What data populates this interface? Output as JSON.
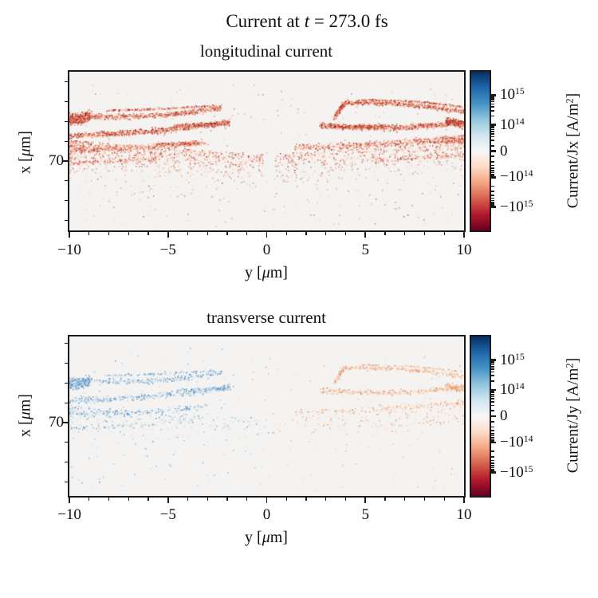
{
  "figure": {
    "suptitle": {
      "segments": [
        {
          "t": "Current at "
        },
        {
          "t": "t",
          "italic": true
        },
        {
          "t": " = 273.0 fs"
        }
      ]
    }
  },
  "palettes": {
    "red": [
      "#fce9dd",
      "#f9d5bd",
      "#f5b99a",
      "#f09b77",
      "#e87b59",
      "#d85b42",
      "#c43d30",
      "#ab2622",
      "#8f1a1c"
    ],
    "blue": [
      "#e8f1f8",
      "#d4e5f2",
      "#bcd7ea",
      "#a0c6e2",
      "#82b3d6",
      "#649dc8",
      "#4b86b8",
      "#3a6fa5"
    ],
    "orange": [
      "#fdf0e6",
      "#fbe2cf",
      "#f8d2b6",
      "#f4c09c",
      "#eeac82",
      "#e69669",
      "#db7f52"
    ]
  },
  "subplots": [
    {
      "title": "longitudinal current",
      "xlabel": {
        "segments": [
          {
            "t": "y ["
          },
          {
            "t": "μ",
            "italic": true
          },
          {
            "t": "m]"
          }
        ]
      },
      "ylabel": {
        "segments": [
          {
            "t": "x ["
          },
          {
            "t": "μ",
            "italic": true
          },
          {
            "t": "m]"
          }
        ]
      },
      "xticklabels": [
        "−10",
        "−5",
        "0",
        "5",
        "10"
      ],
      "yticklabels": [
        "70"
      ],
      "colorbar": {
        "label": {
          "segments": [
            {
              "t": "Current/Jx [A/m"
            },
            {
              "t": "2",
              "sup": true
            },
            {
              "t": "]"
            }
          ]
        },
        "ticklabels": [
          {
            "segments": [
              {
                "t": "10"
              },
              {
                "t": "15",
                "sup": true
              }
            ]
          },
          {
            "segments": [
              {
                "t": "10"
              },
              {
                "t": "14",
                "sup": true
              }
            ]
          },
          {
            "segments": [
              {
                "t": "0"
              }
            ]
          },
          {
            "segments": [
              {
                "t": "−10"
              },
              {
                "t": "14",
                "sup": true
              }
            ]
          },
          {
            "segments": [
              {
                "t": "−10"
              },
              {
                "t": "15",
                "sup": true
              }
            ]
          }
        ]
      }
    },
    {
      "title": "transverse current",
      "xlabel": {
        "segments": [
          {
            "t": "y ["
          },
          {
            "t": "μ",
            "italic": true
          },
          {
            "t": "m]"
          }
        ]
      },
      "ylabel": {
        "segments": [
          {
            "t": "x ["
          },
          {
            "t": "μ",
            "italic": true
          },
          {
            "t": "m]"
          }
        ]
      },
      "xticklabels": [
        "−10",
        "−5",
        "0",
        "5",
        "10"
      ],
      "yticklabels": [
        "70"
      ],
      "colorbar": {
        "label": {
          "segments": [
            {
              "t": "Current/Jy [A/m"
            },
            {
              "t": "2",
              "sup": true
            },
            {
              "t": "]"
            }
          ]
        },
        "ticklabels": [
          {
            "segments": [
              {
                "t": "10"
              },
              {
                "t": "15",
                "sup": true
              }
            ]
          },
          {
            "segments": [
              {
                "t": "10"
              },
              {
                "t": "14",
                "sup": true
              }
            ]
          },
          {
            "segments": [
              {
                "t": "0"
              }
            ]
          },
          {
            "segments": [
              {
                "t": "−10"
              },
              {
                "t": "14",
                "sup": true
              }
            ]
          },
          {
            "segments": [
              {
                "t": "−10"
              },
              {
                "t": "15",
                "sup": true
              }
            ]
          }
        ]
      }
    }
  ],
  "chart_data": [
    {
      "type": "scatter",
      "title": "longitudinal current",
      "x_axis": {
        "label": "y [μm]",
        "range": [
          -10,
          10
        ],
        "major_ticks": [
          -10,
          -5,
          0,
          5,
          10
        ],
        "minor_tick_step": 1
      },
      "y_axis": {
        "label": "x [μm]",
        "labeled_ticks": [
          70
        ],
        "approx_range": [
          61,
          81
        ],
        "minor_tick_step": 2.5
      },
      "color_axis": {
        "label": "Current/Jx [A/m^2]",
        "scale": "symlog",
        "colormap": "RdBu",
        "labeled_ticks": [
          1000000000000000.0,
          100000000000000.0,
          0,
          -100000000000000.0,
          -1000000000000000.0
        ]
      },
      "description": "Negative (red) longitudinal current filaments: nested arc-shaped streaks in both halves of the plot, tips pointing toward the centre, dense blobs at the outer edges, with a diffuse fan of sparse dots below; centre-top region empty.",
      "seed": 1234,
      "pattern": {
        "bands": [
          {
            "u0": 0,
            "v0": 0.27,
            "vm": 0.278,
            "u1": 0.385,
            "v1": 0.225,
            "th": 0.016,
            "n": 900,
            "light": 1.1,
            "palette": "red"
          },
          {
            "u0": 0,
            "v0": 0.295,
            "vm": 0.3,
            "u1": 0.05,
            "v1": 0.27,
            "th": 0.03,
            "n": 500,
            "light": 0.7,
            "palette": "red"
          },
          {
            "u0": 0.09,
            "v0": 0.243,
            "vm": 0.232,
            "u1": 0.37,
            "v1": 0.213,
            "th": 0.006,
            "n": 300,
            "light": 1.2,
            "palette": "red"
          },
          {
            "u0": 0,
            "v0": 0.4,
            "vm": 0.374,
            "u1": 0.405,
            "v1": 0.318,
            "th": 0.018,
            "n": 1000,
            "light": 1.0,
            "palette": "red"
          },
          {
            "u0": 0.27,
            "v0": 0.338,
            "vm": 0.332,
            "u1": 0.405,
            "v1": 0.32,
            "th": 0.01,
            "n": 350,
            "light": 0.8,
            "palette": "red"
          },
          {
            "u0": 0,
            "v0": 0.49,
            "vm": 0.474,
            "u1": 0.35,
            "v1": 0.443,
            "th": 0.018,
            "n": 550,
            "light": 1.4,
            "palette": "red"
          },
          {
            "u0": 0.22,
            "v0": 0.457,
            "vm": 0.452,
            "u1": 0.33,
            "v1": 0.447,
            "th": 0.009,
            "n": 220,
            "light": 1.0,
            "palette": "red"
          },
          {
            "u0": 0,
            "v0": 0.575,
            "vm": 0.563,
            "u1": 0.22,
            "v1": 0.545,
            "th": 0.014,
            "n": 180,
            "light": 1.8,
            "palette": "red"
          },
          {
            "u0": 0.69,
            "v0": 0.195,
            "vm": 0.205,
            "u1": 1,
            "v1": 0.25,
            "th": 0.013,
            "n": 800,
            "light": 1.0,
            "palette": "red"
          },
          {
            "u0": 0.672,
            "v0": 0.29,
            "vm": 0.23,
            "u1": 0.7,
            "v1": 0.196,
            "th": 0.012,
            "n": 260,
            "light": 0.9,
            "palette": "red"
          },
          {
            "u0": 0.73,
            "v0": 0.178,
            "vm": 0.186,
            "u1": 1,
            "v1": 0.222,
            "th": 0.005,
            "n": 260,
            "light": 1.2,
            "palette": "red"
          },
          {
            "u0": 0.635,
            "v0": 0.335,
            "vm": 0.35,
            "u1": 1,
            "v1": 0.313,
            "th": 0.017,
            "n": 1000,
            "light": 1.0,
            "palette": "red"
          },
          {
            "u0": 0.66,
            "v0": 0.347,
            "vm": 0.345,
            "u1": 0.8,
            "v1": 0.34,
            "th": 0.009,
            "n": 300,
            "light": 0.8,
            "palette": "red"
          },
          {
            "u0": 0.955,
            "v0": 0.315,
            "vm": 0.32,
            "u1": 1,
            "v1": 0.332,
            "th": 0.022,
            "n": 320,
            "light": 0.55,
            "palette": "red"
          },
          {
            "u0": 0.57,
            "v0": 0.475,
            "vm": 0.452,
            "u1": 1,
            "v1": 0.41,
            "th": 0.018,
            "n": 600,
            "light": 1.4,
            "palette": "red"
          },
          {
            "u0": 0.945,
            "v0": 0.44,
            "vm": 0.436,
            "u1": 1,
            "v1": 0.43,
            "th": 0.012,
            "n": 200,
            "light": 0.9,
            "palette": "red"
          },
          {
            "u0": 0.775,
            "v0": 0.56,
            "vm": 0.543,
            "u1": 1,
            "v1": 0.52,
            "th": 0.013,
            "n": 160,
            "light": 1.8,
            "palette": "red"
          }
        ],
        "fans": [
          {
            "u0": 0,
            "u1": 0.49,
            "vt0": 0.43,
            "vt1": 0.52,
            "depth": 0.26,
            "n": 1500,
            "edgePow": 1.5,
            "light": 2.0,
            "palette": "red"
          },
          {
            "u0": 1,
            "u1": 0.52,
            "vt0": 0.4,
            "vt1": 0.52,
            "depth": 0.28,
            "n": 1300,
            "edgePow": 1.5,
            "light": 2.0,
            "palette": "red"
          }
        ],
        "scatter": [
          {
            "n": 550,
            "u0": 0,
            "u1": 1,
            "v0": 0.06,
            "v1": 0.97,
            "light": 2.6,
            "alpha": 0.5,
            "palette": "red"
          },
          {
            "n": 60,
            "u0": 0,
            "u1": 1,
            "v0": 0.1,
            "v1": 0.95,
            "light": 1.0,
            "alpha": 0.7,
            "palette": "red"
          }
        ]
      }
    },
    {
      "type": "scatter",
      "title": "transverse current",
      "x_axis": {
        "label": "y [μm]",
        "range": [
          -10,
          10
        ],
        "major_ticks": [
          -10,
          -5,
          0,
          5,
          10
        ],
        "minor_tick_step": 1
      },
      "y_axis": {
        "label": "x [μm]",
        "labeled_ticks": [
          70
        ],
        "approx_range": [
          61,
          81
        ],
        "minor_tick_step": 2.5
      },
      "color_axis": {
        "label": "Current/Jy [A/m^2]",
        "scale": "symlog",
        "colormap": "RdBu",
        "labeled_ticks": [
          1000000000000000.0,
          100000000000000.0,
          0,
          -100000000000000.0,
          -1000000000000000.0
        ]
      },
      "description": "Faint antisymmetric transverse current: same arc filaments, positive (light blue) on the left half, negative (light orange) on the right half, much lower intensity than the longitudinal plot.",
      "seed": 99,
      "pattern": {
        "bands": [
          {
            "u0": 0,
            "v0": 0.27,
            "vm": 0.278,
            "u1": 0.385,
            "v1": 0.225,
            "th": 0.016,
            "n": 400,
            "light": 1.3,
            "palette": "blue"
          },
          {
            "u0": 0,
            "v0": 0.295,
            "vm": 0.3,
            "u1": 0.05,
            "v1": 0.27,
            "th": 0.03,
            "n": 260,
            "light": 0.8,
            "palette": "blue"
          },
          {
            "u0": 0.09,
            "v0": 0.243,
            "vm": 0.232,
            "u1": 0.37,
            "v1": 0.213,
            "th": 0.006,
            "n": 140,
            "light": 1.4,
            "palette": "blue"
          },
          {
            "u0": 0,
            "v0": 0.4,
            "vm": 0.374,
            "u1": 0.405,
            "v1": 0.318,
            "th": 0.018,
            "n": 450,
            "light": 1.3,
            "palette": "blue"
          },
          {
            "u0": 0.27,
            "v0": 0.338,
            "vm": 0.332,
            "u1": 0.405,
            "v1": 0.32,
            "th": 0.01,
            "n": 150,
            "light": 1.1,
            "palette": "blue"
          },
          {
            "u0": 0,
            "v0": 0.49,
            "vm": 0.474,
            "u1": 0.35,
            "v1": 0.443,
            "th": 0.018,
            "n": 250,
            "light": 1.6,
            "palette": "blue"
          },
          {
            "u0": 0,
            "v0": 0.575,
            "vm": 0.563,
            "u1": 0.22,
            "v1": 0.545,
            "th": 0.014,
            "n": 80,
            "light": 2.0,
            "palette": "blue"
          },
          {
            "u0": 0.69,
            "v0": 0.195,
            "vm": 0.205,
            "u1": 1,
            "v1": 0.25,
            "th": 0.013,
            "n": 360,
            "light": 1.2,
            "palette": "orange"
          },
          {
            "u0": 0.672,
            "v0": 0.29,
            "vm": 0.23,
            "u1": 0.7,
            "v1": 0.196,
            "th": 0.012,
            "n": 110,
            "light": 1.1,
            "palette": "orange"
          },
          {
            "u0": 0.73,
            "v0": 0.178,
            "vm": 0.186,
            "u1": 1,
            "v1": 0.222,
            "th": 0.005,
            "n": 120,
            "light": 1.2,
            "palette": "orange"
          },
          {
            "u0": 0.635,
            "v0": 0.335,
            "vm": 0.35,
            "u1": 1,
            "v1": 0.313,
            "th": 0.017,
            "n": 450,
            "light": 1.2,
            "palette": "orange"
          },
          {
            "u0": 0.955,
            "v0": 0.315,
            "vm": 0.32,
            "u1": 1,
            "v1": 0.332,
            "th": 0.022,
            "n": 140,
            "light": 0.9,
            "palette": "orange"
          },
          {
            "u0": 0.57,
            "v0": 0.475,
            "vm": 0.452,
            "u1": 1,
            "v1": 0.41,
            "th": 0.018,
            "n": 260,
            "light": 1.6,
            "palette": "orange"
          },
          {
            "u0": 0.775,
            "v0": 0.56,
            "vm": 0.543,
            "u1": 1,
            "v1": 0.52,
            "th": 0.013,
            "n": 70,
            "light": 2.0,
            "palette": "orange"
          }
        ],
        "fans": [
          {
            "u0": 0,
            "u1": 0.49,
            "vt0": 0.43,
            "vt1": 0.52,
            "depth": 0.26,
            "n": 450,
            "edgePow": 1.5,
            "light": 2.4,
            "palette": "blue"
          },
          {
            "u0": 1,
            "u1": 0.52,
            "vt0": 0.4,
            "vt1": 0.52,
            "depth": 0.28,
            "n": 400,
            "edgePow": 1.5,
            "light": 2.4,
            "palette": "orange"
          }
        ],
        "scatter": [
          {
            "n": 140,
            "u0": 0,
            "u1": 0.5,
            "v0": 0.06,
            "v1": 0.97,
            "light": 2.0,
            "alpha": 0.5,
            "palette": "blue"
          },
          {
            "n": 120,
            "u0": 0.5,
            "u1": 1,
            "v0": 0.06,
            "v1": 0.97,
            "light": 2.2,
            "alpha": 0.5,
            "palette": "orange"
          },
          {
            "n": 50,
            "u0": 0,
            "u1": 0.55,
            "v0": 0.1,
            "v1": 0.95,
            "light": 0.9,
            "alpha": 0.7,
            "palette": "blue"
          },
          {
            "n": 35,
            "u0": 0.45,
            "u1": 1,
            "v0": 0.1,
            "v1": 0.95,
            "light": 1.0,
            "alpha": 0.7,
            "palette": "orange"
          }
        ]
      }
    }
  ]
}
